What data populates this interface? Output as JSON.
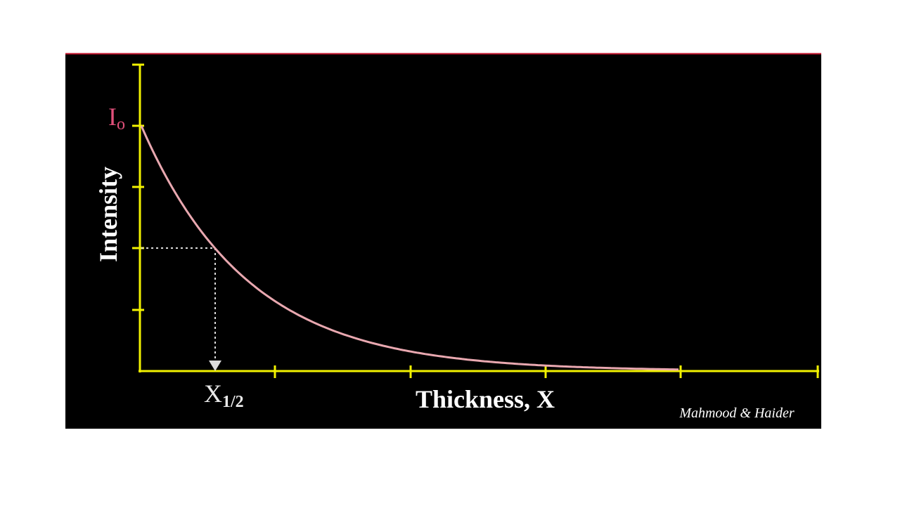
{
  "y_axis": {
    "label": "Intensity",
    "top_value": {
      "symbol": "I",
      "subscript": "o"
    }
  },
  "x_axis": {
    "label": "Thickness, X",
    "marker": {
      "symbol": "X",
      "subscript": "1/2"
    }
  },
  "credit": "Mahmood & Haider"
}
